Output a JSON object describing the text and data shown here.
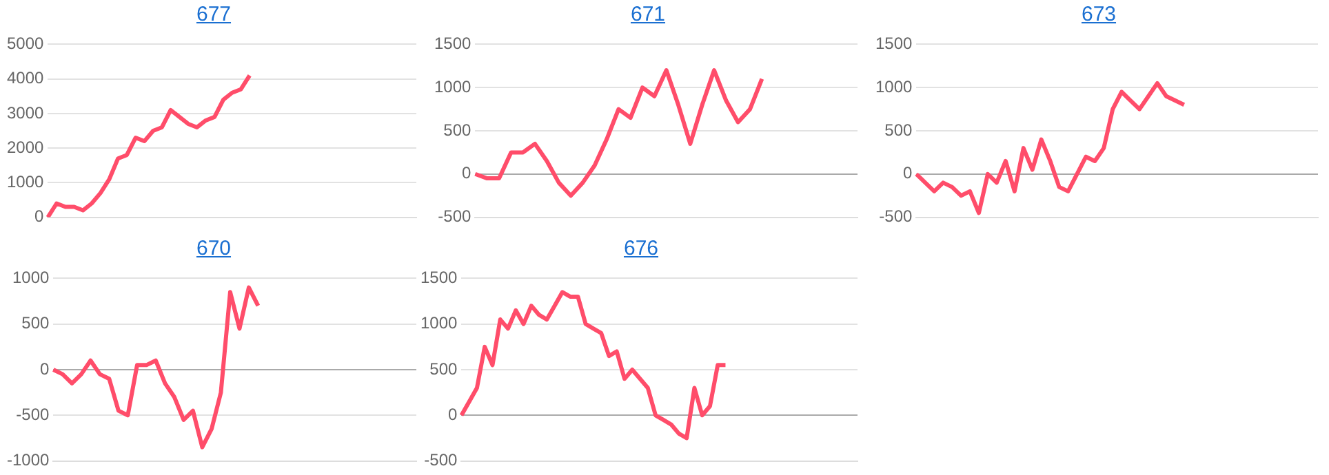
{
  "chart_data": [
    {
      "type": "line",
      "title": "677",
      "categories": [
        null,
        null,
        null,
        null,
        null,
        null,
        null,
        null,
        null,
        null,
        null,
        null,
        null,
        null,
        null,
        null,
        null,
        null,
        null,
        null,
        null,
        null,
        null,
        null,
        null,
        null,
        null,
        null,
        null,
        null,
        null,
        null,
        null,
        null,
        null,
        null,
        null,
        null,
        null,
        null,
        null,
        null,
        null
      ],
      "series": [
        {
          "color": "#ff4d6a",
          "values": [
            0,
            400,
            300,
            300,
            200,
            400,
            700,
            1100,
            1700,
            1800,
            2300,
            2200,
            2500,
            2600,
            3100,
            2900,
            2700,
            2600,
            2800,
            2900,
            3400,
            3600,
            3700,
            4100,
            null,
            null,
            null,
            null,
            null,
            null,
            null,
            null,
            null,
            null,
            null,
            null,
            null,
            null,
            null,
            null,
            null,
            null,
            null
          ]
        }
      ],
      "ylim": [
        0,
        5000
      ],
      "yticks": [
        0,
        1000,
        2000,
        3000,
        4000,
        5000
      ],
      "grid": "y",
      "legend": false,
      "tick_labels": "y",
      "marker": "none"
    },
    {
      "type": "line",
      "title": "671",
      "categories": [
        null,
        null,
        null,
        null,
        null,
        null,
        null,
        null,
        null,
        null,
        null,
        null,
        null,
        null,
        null,
        null,
        null,
        null,
        null,
        null,
        null,
        null,
        null,
        null,
        null,
        null,
        null,
        null,
        null,
        null,
        null,
        null,
        null
      ],
      "series": [
        {
          "color": "#ff4d6a",
          "values": [
            0,
            -50,
            -50,
            250,
            250,
            350,
            150,
            -100,
            -250,
            -100,
            100,
            400,
            750,
            650,
            1000,
            900,
            1200,
            800,
            350,
            800,
            1200,
            850,
            600,
            750,
            1100,
            null,
            null,
            null,
            null,
            null,
            null,
            null,
            null
          ]
        }
      ],
      "ylim": [
        -500,
        1500
      ],
      "yticks": [
        -500,
        0,
        500,
        1000,
        1500
      ],
      "grid": "y",
      "legend": false,
      "tick_labels": "y",
      "marker": "none"
    },
    {
      "type": "line",
      "title": "673",
      "categories": [
        null,
        null,
        null,
        null,
        null,
        null,
        null,
        null,
        null,
        null,
        null,
        null,
        null,
        null,
        null,
        null,
        null,
        null,
        null,
        null,
        null,
        null,
        null,
        null,
        null,
        null,
        null,
        null,
        null,
        null,
        null,
        null,
        null,
        null,
        null,
        null,
        null,
        null,
        null,
        null,
        null,
        null,
        null,
        null,
        null,
        null
      ],
      "series": [
        {
          "color": "#ff4d6a",
          "values": [
            0,
            -100,
            -200,
            -100,
            -150,
            -250,
            -200,
            -450,
            0,
            -100,
            150,
            -200,
            300,
            50,
            400,
            150,
            -150,
            -200,
            0,
            200,
            150,
            300,
            750,
            950,
            850,
            750,
            900,
            1050,
            900,
            850,
            800,
            null,
            null,
            null,
            null,
            null,
            null,
            null,
            null,
            null,
            null,
            null,
            null,
            null,
            null,
            null
          ]
        }
      ],
      "ylim": [
        -500,
        1500
      ],
      "yticks": [
        -500,
        0,
        500,
        1000,
        1500
      ],
      "grid": "y",
      "legend": false,
      "tick_labels": "y",
      "marker": "none"
    },
    {
      "type": "line",
      "title": "670",
      "categories": [
        null,
        null,
        null,
        null,
        null,
        null,
        null,
        null,
        null,
        null,
        null,
        null,
        null,
        null,
        null,
        null,
        null,
        null,
        null,
        null,
        null,
        null,
        null,
        null,
        null,
        null,
        null,
        null,
        null,
        null,
        null,
        null,
        null,
        null,
        null,
        null,
        null,
        null,
        null,
        null
      ],
      "series": [
        {
          "color": "#ff4d6a",
          "values": [
            0,
            -50,
            -150,
            -50,
            100,
            -50,
            -100,
            -450,
            -500,
            50,
            50,
            100,
            -150,
            -300,
            -550,
            -450,
            -850,
            -650,
            -250,
            850,
            450,
            900,
            700,
            null,
            null,
            null,
            null,
            null,
            null,
            null,
            null,
            null,
            null,
            null,
            null,
            null,
            null,
            null,
            null,
            null
          ]
        }
      ],
      "ylim": [
        -1000,
        1000
      ],
      "yticks": [
        -1000,
        -500,
        0,
        500,
        1000
      ],
      "grid": "y",
      "legend": false,
      "tick_labels": "y",
      "marker": "none"
    },
    {
      "type": "line",
      "title": "676",
      "categories": [
        null,
        null,
        null,
        null,
        null,
        null,
        null,
        null,
        null,
        null,
        null,
        null,
        null,
        null,
        null,
        null,
        null,
        null,
        null,
        null,
        null,
        null,
        null,
        null,
        null,
        null,
        null,
        null,
        null,
        null,
        null,
        null,
        null,
        null,
        null,
        null,
        null,
        null,
        null,
        null,
        null,
        null,
        null,
        null,
        null,
        null,
        null,
        null,
        null,
        null,
        null,
        null
      ],
      "series": [
        {
          "color": "#ff4d6a",
          "values": [
            0,
            150,
            300,
            750,
            550,
            1050,
            950,
            1150,
            1000,
            1200,
            1100,
            1050,
            1200,
            1350,
            1300,
            1300,
            1000,
            950,
            900,
            650,
            700,
            400,
            500,
            400,
            300,
            0,
            -50,
            -100,
            -200,
            -250,
            300,
            0,
            100,
            550,
            550,
            null,
            null,
            null,
            null,
            null,
            null,
            null,
            null,
            null,
            null,
            null,
            null,
            null,
            null,
            null,
            null,
            null
          ]
        }
      ],
      "ylim": [
        -500,
        1500
      ],
      "yticks": [
        -500,
        0,
        500,
        1000,
        1500
      ],
      "grid": "y",
      "legend": false,
      "tick_labels": "y",
      "marker": "none"
    }
  ]
}
